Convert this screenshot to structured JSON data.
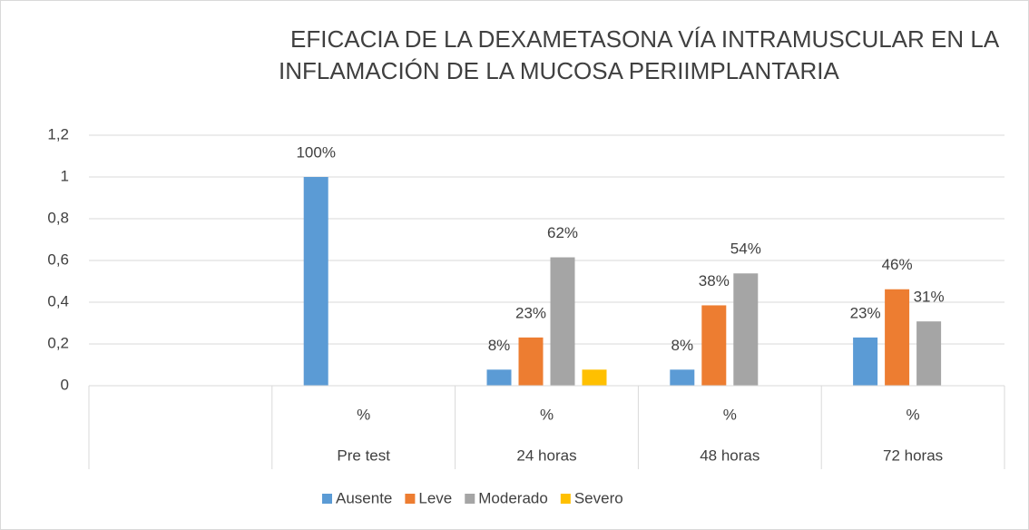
{
  "chart_data": {
    "type": "bar",
    "title": [
      "EFICACIA DE LA DEXAMETASONA VÍA INTRAMUSCULAR EN LA",
      "INFLAMACIÓN  DE LA MUCOSA PERIIMPLANTARIA"
    ],
    "categories": [
      null,
      "%",
      "%",
      "%",
      "%"
    ],
    "groups": [
      null,
      "Pre test",
      "24 horas",
      "48 horas",
      "72 horas"
    ],
    "series": [
      {
        "name": "Ausente",
        "color": "#5b9bd5",
        "values": [
          null,
          1,
          0.077,
          0.077,
          0.231
        ],
        "value_labels": [
          null,
          "100%",
          "8%",
          "8%",
          "23%"
        ]
      },
      {
        "name": "Leve",
        "color": "#ed7d31",
        "values": [
          null,
          null,
          0.231,
          0.385,
          0.462
        ],
        "value_labels": [
          null,
          null,
          "23%",
          "38%",
          "46%"
        ]
      },
      {
        "name": "Moderado",
        "color": "#a5a5a5",
        "values": [
          null,
          null,
          0.615,
          0.538,
          0.308
        ],
        "value_labels": [
          null,
          null,
          "62%",
          "54%",
          "31%"
        ]
      },
      {
        "name": "Severo",
        "color": "#ffc000",
        "values": [
          null,
          null,
          0.077,
          null,
          null
        ],
        "value_labels": [
          null,
          null,
          null,
          null,
          null
        ]
      }
    ],
    "ylim": [
      0,
      1.2
    ],
    "yticks": [
      0,
      {
        "value": 0.2,
        "label": "0,2"
      },
      {
        "value": 0.4,
        "label": "0,4"
      },
      {
        "value": 0.6,
        "label": "0,6"
      },
      {
        "value": 0.8,
        "label": "0,8"
      },
      1,
      {
        "value": 1.2,
        "label": "1,2"
      }
    ],
    "grid": true,
    "legend": "bottom"
  }
}
